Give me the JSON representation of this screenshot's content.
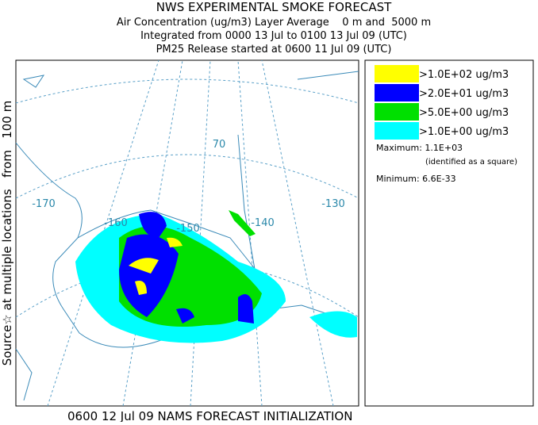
{
  "header": {
    "title": "NWS EXPERIMENTAL SMOKE FORECAST",
    "lines": [
      "Air Concentration (ug/m3) Layer Average    0 m and  5000 m",
      "Integrated from 0000 13 Jul to 0100 13 Jul 09 (UTC)",
      "PM25 Release started at 0600 11 Jul 09 (UTC)"
    ]
  },
  "side_label": "Source☆ at multiple locations   from   100 m",
  "map": {
    "labels": [
      "-170",
      "-160",
      "-150",
      "-140",
      "-130",
      "70"
    ]
  },
  "legend": {
    "entries": [
      {
        "label": ">1.0E+02 ug/m3",
        "color": "#ffff00"
      },
      {
        "label": ">2.0E+01 ug/m3",
        "color": "#0000ff"
      },
      {
        "label": ">5.0E+00 ug/m3",
        "color": "#00e000"
      },
      {
        "label": ">1.0E+00 ug/m3",
        "color": "#00ffff"
      }
    ],
    "maximum": "Maximum: 1.1E+03",
    "max_note": "(identified as a square)",
    "minimum": "Minimum: 6.6E-33"
  },
  "footer": "0600 12 Jul 09 NAMS FORECAST INITIALIZATION"
}
